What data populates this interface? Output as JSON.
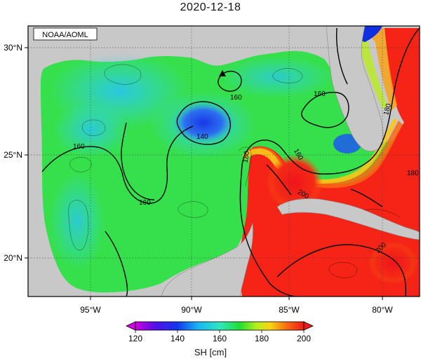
{
  "title": "2020-12-18",
  "credit": "NOAA/AOML",
  "lat_labels": [
    "30°N",
    "25°N",
    "20°N"
  ],
  "lon_labels": [
    "95°W",
    "90°W",
    "85°W",
    "80°W"
  ],
  "contour_labels": [
    "160",
    "160",
    "160",
    "160",
    "140",
    "180",
    "180",
    "160",
    "200",
    "200",
    "180"
  ],
  "colorbar": {
    "title": "SH [cm]",
    "ticks": [
      "120",
      "140",
      "160",
      "180",
      "200"
    ]
  },
  "colors": {
    "land": "#c8c8c8",
    "ocean_low": "#1a3fe0",
    "ocean_mid": "#2ee25a",
    "ocean_high": "#f31a1a"
  }
}
